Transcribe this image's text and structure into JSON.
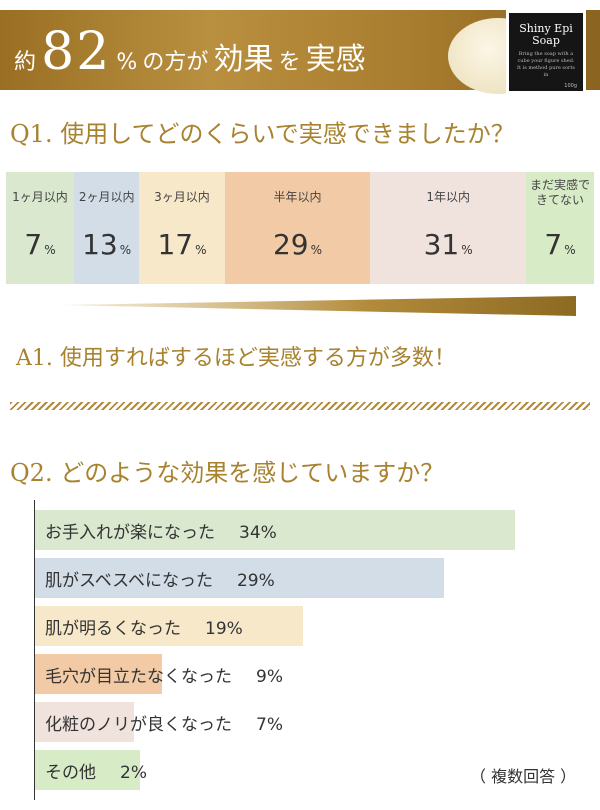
{
  "banner": {
    "prefix": "約",
    "number": "82",
    "percent": "%",
    "rest1": "の方が",
    "word1": "効果",
    "rest2": "を",
    "word2": "実感"
  },
  "product": {
    "name_line1": "Shiny Epi",
    "name_line2": "Soap",
    "fine_print": "Bring the soap with a cube your figure shed. It is method pure sorts in",
    "weight": "100g"
  },
  "colors": {
    "gold": "#a8822f",
    "green": "#d9e8cf",
    "blue": "#d3dde8",
    "cream": "#f7e8c9",
    "peach": "#f2cba6",
    "beige": "#f0e2dc",
    "yellow_green": "#d6ebc6"
  },
  "q1": {
    "question": "Q1. 使用してどのくらいで実感できましたか？"
  },
  "a1": {
    "answer": "A1. 使用すればするほど実感する方が多数！"
  },
  "q2": {
    "question": "Q2. どのような効果を感じていますか？",
    "note": "（ 複数回答 ）"
  },
  "chart_data": [
    {
      "type": "bar",
      "title": "Q1. 使用してどのくらいで実感できましたか？",
      "categories": [
        "1ヶ月以内",
        "2ヶ月以内",
        "3ヶ月以内",
        "半年以内",
        "1年以内",
        "まだ実感できてない"
      ],
      "values": [
        7,
        13,
        17,
        29,
        31,
        7
      ],
      "labels": [
        "7",
        "13",
        "17",
        "29",
        "31",
        "7"
      ],
      "unit": "%",
      "colors": [
        "#d9e8cf",
        "#d3dde8",
        "#f7e8c9",
        "#f2cba6",
        "#f0e2dc",
        "#d6ebc6"
      ]
    },
    {
      "type": "bar",
      "title": "Q2. どのような効果を感じていますか？",
      "categories": [
        "お手入れが楽になった",
        "肌がスベスベになった",
        "肌が明るくなった",
        "毛穴が目立たなくなった",
        "化粧のノリが良くなった",
        "その他"
      ],
      "values": [
        34,
        29,
        19,
        9,
        7,
        2
      ],
      "labels": [
        "34%",
        "29%",
        "19%",
        "9%",
        "7%",
        "2%"
      ],
      "colors": [
        "#d9e8cf",
        "#d3dde8",
        "#f7e8c9",
        "#f2cba6",
        "#f0e2dc",
        "#d6ebc6"
      ]
    }
  ]
}
